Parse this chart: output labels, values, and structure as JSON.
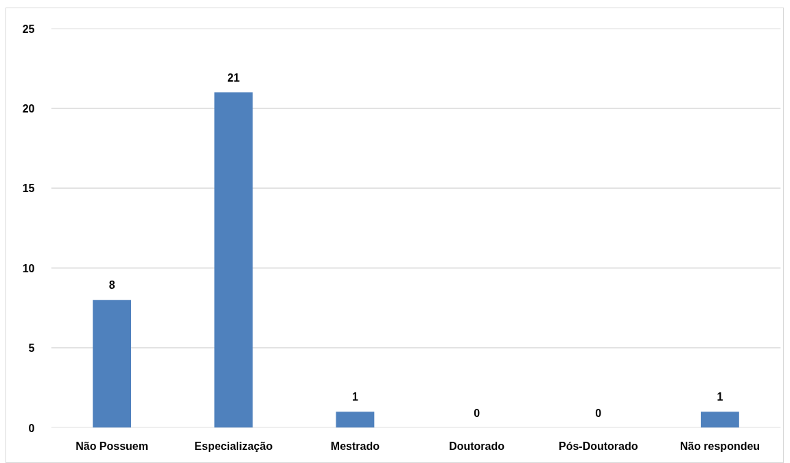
{
  "chart_data": {
    "type": "bar",
    "categories": [
      "Não Possuem",
      "Especialização",
      "Mestrado",
      "Doutorado",
      "Pós-Doutorado",
      "Não respondeu"
    ],
    "values": [
      8,
      21,
      1,
      0,
      0,
      1
    ],
    "color": "#4f81bd",
    "ylim": [
      0,
      25
    ],
    "yticks": [
      0,
      5,
      10,
      15,
      20,
      25
    ],
    "grid": "y",
    "data_labels": true
  }
}
